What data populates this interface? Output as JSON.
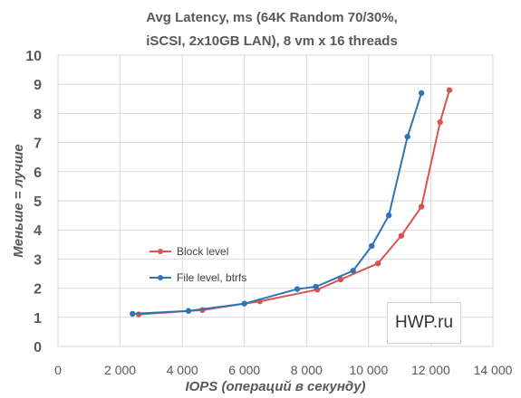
{
  "chart_data": {
    "type": "line",
    "title_line1": "Avg Latency, ms (64K Random 70/30%,",
    "title_line2": "iSCSI, 2x10GB LAN), 8 vm x 16 threads",
    "xlabel": "IOPS (операций в секунду)",
    "ylabel": "Меньше = лучше",
    "xlim": [
      0,
      14000
    ],
    "ylim": [
      0,
      10
    ],
    "xticks": [
      0,
      2000,
      4000,
      6000,
      8000,
      10000,
      12000,
      14000
    ],
    "xtick_labels": [
      "0",
      "2 000",
      "4 000",
      "6 000",
      "8 000",
      "10 000",
      "12 000",
      "14 000"
    ],
    "yticks": [
      0,
      1,
      2,
      3,
      4,
      5,
      6,
      7,
      8,
      9,
      10
    ],
    "ytick_labels": [
      "0",
      "1",
      "2",
      "3",
      "4",
      "5",
      "6",
      "7",
      "8",
      "9",
      "10"
    ],
    "grid": true,
    "legend_position": "center-left",
    "series": [
      {
        "name": "Block level",
        "color": "#d9534f",
        "x": [
          2600,
          4650,
          6500,
          8350,
          9100,
          10300,
          11050,
          11700,
          12300,
          12600
        ],
        "y": [
          1.1,
          1.25,
          1.55,
          1.95,
          2.3,
          2.85,
          3.8,
          4.8,
          7.7,
          8.8
        ]
      },
      {
        "name": "File level, btrfs",
        "color": "#2e75b6",
        "x": [
          2400,
          4200,
          6000,
          7700,
          8300,
          9500,
          10100,
          10650,
          11250,
          11700
        ],
        "y": [
          1.12,
          1.22,
          1.47,
          1.97,
          2.05,
          2.6,
          3.45,
          4.5,
          7.2,
          8.7
        ]
      }
    ]
  },
  "watermark": "HWP.ru"
}
